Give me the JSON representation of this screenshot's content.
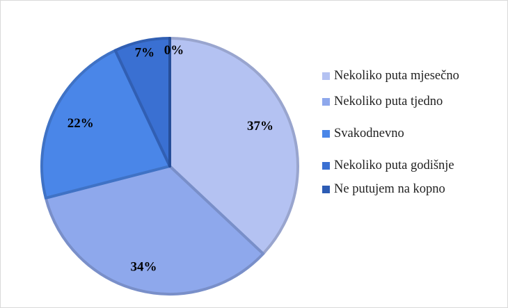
{
  "chart_data": {
    "type": "pie",
    "categories": [
      "Nekoliko puta mjesečno",
      "Nekoliko puta tjedno",
      "Svakodnevno",
      "Nekoliko puta godišnje",
      "Ne putujem na kopno"
    ],
    "values": [
      37,
      34,
      22,
      7,
      0
    ],
    "value_labels": [
      "37%",
      "34%",
      "22%",
      "7%",
      "0%"
    ],
    "colors": [
      "#b4c2f2",
      "#8ea8ec",
      "#4a86e8",
      "#3a70d2",
      "#2d5cb4"
    ],
    "legend": "right"
  }
}
